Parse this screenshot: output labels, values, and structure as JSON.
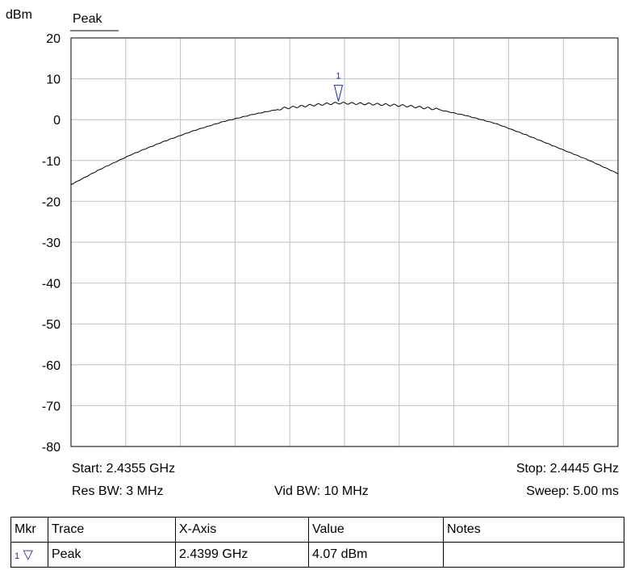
{
  "chart_data": {
    "type": "line",
    "unit_label": "dBm",
    "legend": "Peak",
    "ylim": [
      -80,
      20
    ],
    "y_ticks": [
      "20",
      "10",
      "0",
      "-10",
      "-20",
      "-30",
      "-40",
      "-50",
      "-60",
      "-70",
      "-80"
    ],
    "x_range_ghz": [
      2.4355,
      2.4445
    ],
    "grid": true,
    "series": [
      {
        "name": "Peak",
        "x": [
          2.4355,
          2.436,
          2.4365,
          2.437,
          2.4375,
          2.438,
          2.4385,
          2.439,
          2.4395,
          2.4399,
          2.4405,
          2.441,
          2.4415,
          2.442,
          2.4425,
          2.443,
          2.4435,
          2.444,
          2.4445
        ],
        "y": [
          -15.9,
          -12.0,
          -8.5,
          -5.5,
          -2.8,
          -0.5,
          1.3,
          2.8,
          3.6,
          4.07,
          3.8,
          3.4,
          2.6,
          1.0,
          -1.0,
          -3.8,
          -6.8,
          -9.8,
          -13.2
        ]
      }
    ],
    "marker": {
      "number": "1",
      "x": 2.4399,
      "y": 4.07
    },
    "start": "Start: 2.4355 GHz",
    "stop": "Stop: 2.4445 GHz",
    "res_bw": "Res BW: 3 MHz",
    "vid_bw": "Vid BW: 10 MHz",
    "sweep": "Sweep: 5.00 ms"
  },
  "marker_table": {
    "headers": [
      "Mkr",
      "Trace",
      "X-Axis",
      "Value",
      "Notes"
    ],
    "rows": [
      {
        "mkr": "1",
        "marker_icon": "down-triangle-icon",
        "trace": "Peak",
        "x_axis": "2.4399 GHz",
        "value": "4.07 dBm",
        "notes": ""
      }
    ]
  },
  "colors": {
    "trace": "#000000",
    "grid": "#c0c0c0",
    "marker": "#1a2ab0"
  }
}
